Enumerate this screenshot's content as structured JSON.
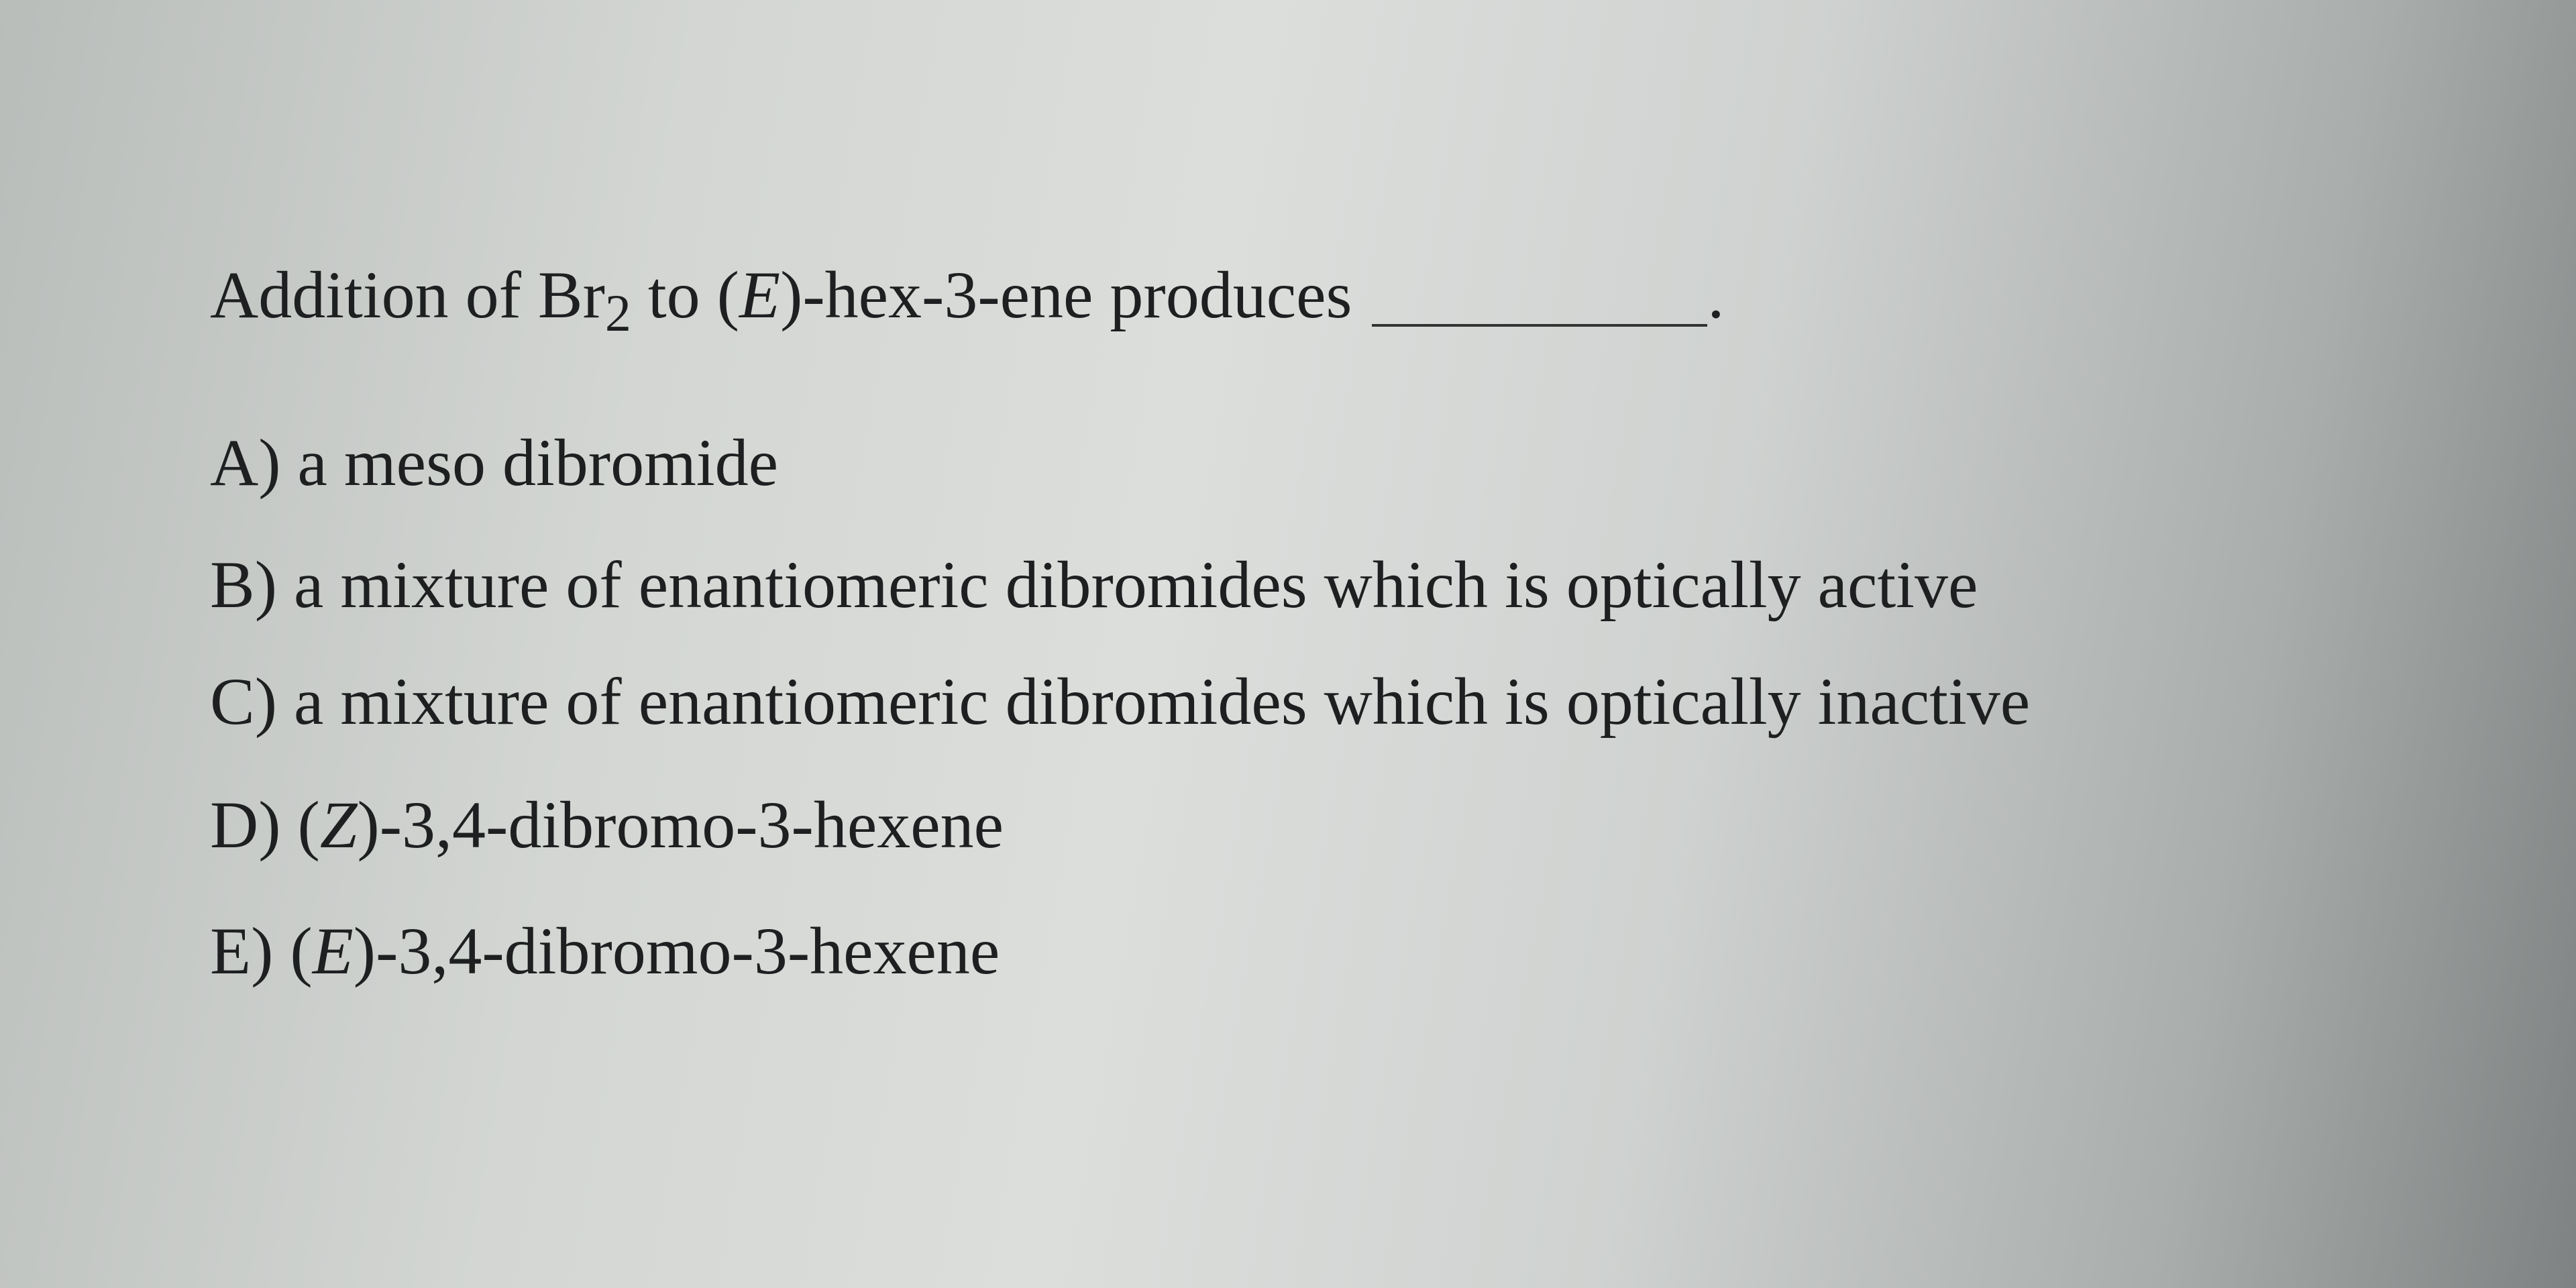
{
  "question": {
    "parts": [
      "Addition of Br",
      "2",
      " to (",
      "E",
      ")-hex-3-ene produces"
    ],
    "end": "."
  },
  "options": [
    [
      "A) a meso dibromide"
    ],
    [
      "B) a mixture of enantiomeric dibromides which is optically active"
    ],
    [
      "C) a mixture of enantiomeric dibromides which is optically inactive"
    ],
    [
      "D) (",
      "Z",
      ")-3,4-dibromo-3-hexene"
    ],
    [
      "E) (",
      "E",
      ")-3,4-dibromo-3-hexene"
    ]
  ]
}
